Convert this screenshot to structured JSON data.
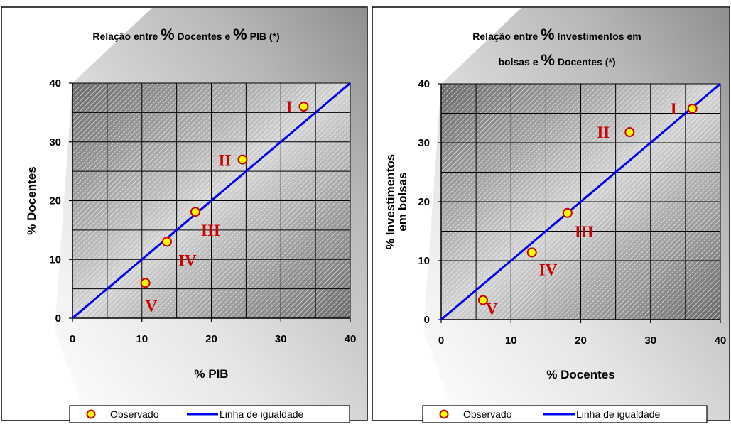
{
  "colors": {
    "line": "#0000ee",
    "marker_fill": "#ffff00",
    "marker_stroke": "#cc0000",
    "roman_labels": "#cc0000"
  },
  "legend": {
    "observed": "Observado",
    "equality_line": "Linha de igualdade"
  },
  "chart_data": [
    {
      "type": "scatter",
      "title_parts": [
        "Relação entre ",
        "%",
        " Docentes e ",
        "%",
        " PIB  (*)"
      ],
      "xlabel": "% PIB",
      "ylabel": "% Docentes",
      "xlim": [
        0,
        40
      ],
      "ylim": [
        0,
        40
      ],
      "xticks": [
        0,
        10,
        20,
        30,
        40
      ],
      "yticks": [
        0,
        10,
        20,
        30,
        40
      ],
      "grid": true,
      "legend_position": "bottom",
      "series": [
        {
          "name": "Observado",
          "points": [
            {
              "label": "I",
              "x": 33.3,
              "y": 36.0
            },
            {
              "label": "II",
              "x": 24.5,
              "y": 27.0
            },
            {
              "label": "III",
              "x": 17.7,
              "y": 18.1
            },
            {
              "label": "IV",
              "x": 13.6,
              "y": 13.0
            },
            {
              "label": "V",
              "x": 10.5,
              "y": 6.0
            }
          ]
        },
        {
          "name": "Linha de igualdade",
          "x": [
            0,
            40
          ],
          "y": [
            0,
            40
          ]
        }
      ]
    },
    {
      "type": "scatter",
      "title_lines": [
        [
          "Relação entre ",
          "%",
          " Investimentos em"
        ],
        [
          "bolsas e ",
          "%",
          " Docentes  (*)"
        ]
      ],
      "xlabel": "% Docentes",
      "ylabel_lines": [
        "% Investimentos",
        "em bolsas"
      ],
      "xlim": [
        0,
        40
      ],
      "ylim": [
        0,
        40
      ],
      "xticks": [
        0,
        10,
        20,
        30,
        40
      ],
      "yticks": [
        0,
        10,
        20,
        30,
        40
      ],
      "grid": true,
      "legend_position": "bottom",
      "series": [
        {
          "name": "Observado",
          "points": [
            {
              "label": "I",
              "x": 36.0,
              "y": 35.8
            },
            {
              "label": "II",
              "x": 27.0,
              "y": 31.8
            },
            {
              "label": "III",
              "x": 18.1,
              "y": 18.1
            },
            {
              "label": "IV",
              "x": 13.0,
              "y": 11.4
            },
            {
              "label": "V",
              "x": 6.0,
              "y": 3.3
            }
          ]
        },
        {
          "name": "Linha de igualdade",
          "x": [
            0,
            40
          ],
          "y": [
            0,
            40
          ]
        }
      ]
    }
  ]
}
